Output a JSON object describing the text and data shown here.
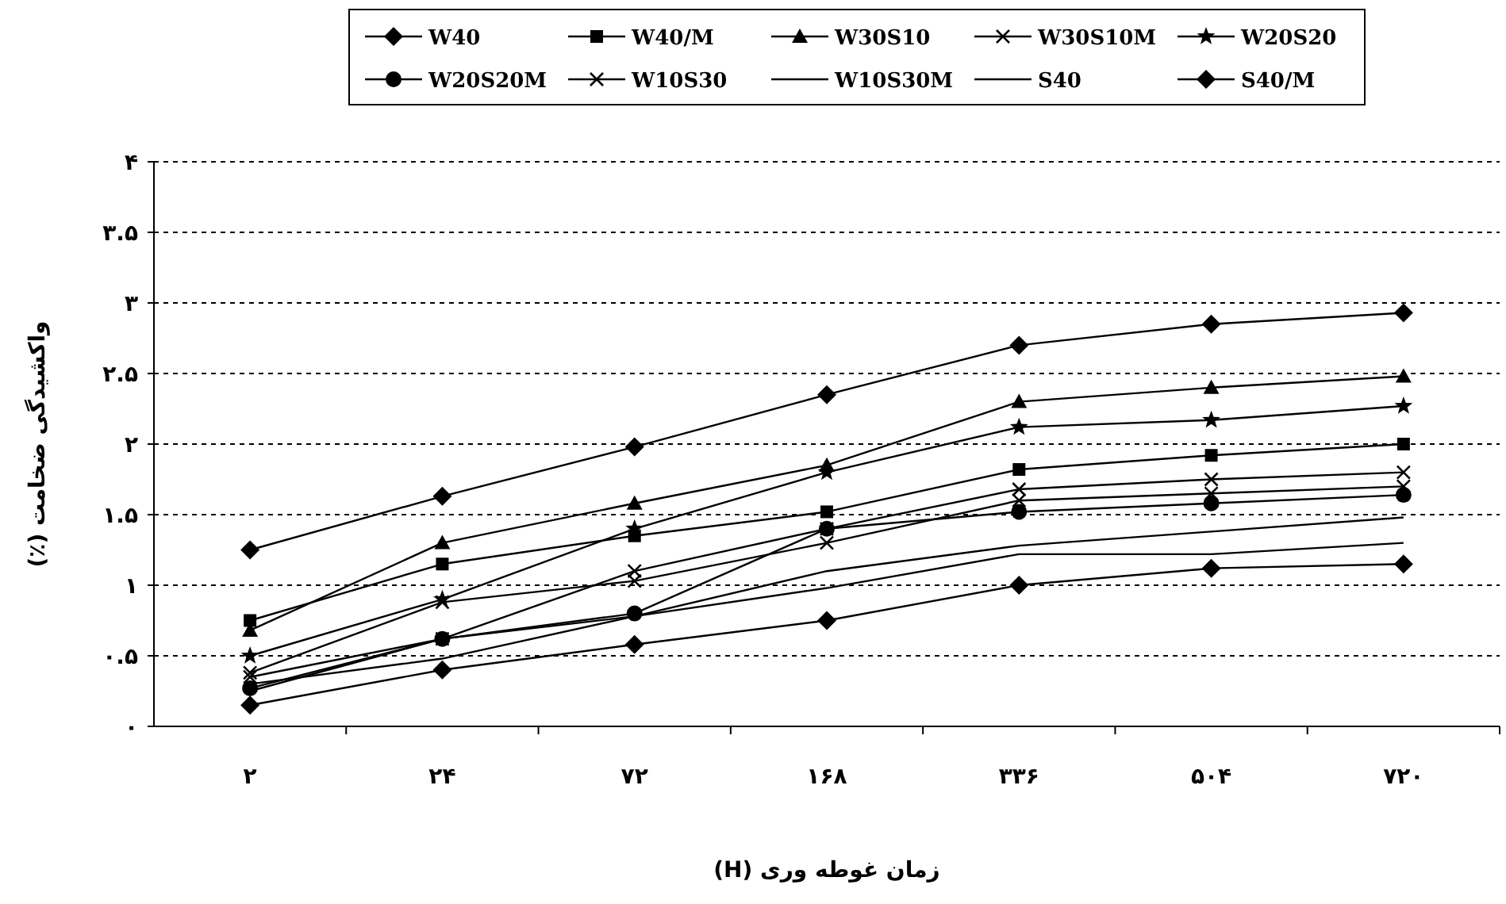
{
  "chart_data": {
    "type": "line",
    "xlabel": "زمان غوطه وری (H)",
    "ylabel": "واکشیدگی ضخامت (٪)",
    "categories": [
      "۲",
      "۲۴",
      "۷۲",
      "۱۶۸",
      "۳۳۶",
      "۵۰۴",
      "۷۲۰"
    ],
    "ylim": [
      0,
      4
    ],
    "yticks": [
      {
        "value": 0,
        "label": "۰"
      },
      {
        "value": 0.5,
        "label": "۰.۵"
      },
      {
        "value": 1,
        "label": "۱"
      },
      {
        "value": 1.5,
        "label": "۱.۵"
      },
      {
        "value": 2,
        "label": "۲"
      },
      {
        "value": 2.5,
        "label": "۲.۵"
      },
      {
        "value": 3,
        "label": "۳"
      },
      {
        "value": 3.5,
        "label": "۳.۵"
      },
      {
        "value": 4,
        "label": "۴"
      }
    ],
    "grid": "y",
    "legend": "top",
    "line_style": "solid",
    "series": [
      {
        "name": "W40",
        "color": "#000000",
        "marker": "diamond",
        "values": [
          1.25,
          1.63,
          1.98,
          2.35,
          2.7,
          2.85,
          2.93
        ]
      },
      {
        "name": "W40/M",
        "color": "#000000",
        "marker": "square",
        "values": [
          0.75,
          1.15,
          1.35,
          1.52,
          1.82,
          1.92,
          2.0
        ]
      },
      {
        "name": "W30S10",
        "color": "#000000",
        "marker": "triangle",
        "values": [
          0.68,
          1.3,
          1.58,
          1.85,
          2.3,
          2.4,
          2.48
        ]
      },
      {
        "name": "W30S10M",
        "color": "#000000",
        "marker": "cross",
        "values": [
          0.35,
          0.62,
          1.1,
          1.4,
          1.68,
          1.75,
          1.8
        ]
      },
      {
        "name": "W20S20",
        "color": "#000000",
        "marker": "star",
        "values": [
          0.5,
          0.9,
          1.4,
          1.8,
          2.12,
          2.17,
          2.27
        ]
      },
      {
        "name": "W20S20M",
        "color": "#000000",
        "marker": "circle",
        "values": [
          0.27,
          0.62,
          0.8,
          1.4,
          1.52,
          1.58,
          1.64
        ]
      },
      {
        "name": "W10S30",
        "color": "#000000",
        "marker": "cross",
        "values": [
          0.38,
          0.88,
          1.03,
          1.3,
          1.6,
          1.65,
          1.7
        ]
      },
      {
        "name": "W10S30M",
        "color": "#000000",
        "marker": "none",
        "values": [
          0.25,
          0.62,
          0.78,
          1.1,
          1.28,
          1.38,
          1.48
        ]
      },
      {
        "name": "S40",
        "color": "#000000",
        "marker": "none",
        "values": [
          0.3,
          0.48,
          0.78,
          0.98,
          1.22,
          1.22,
          1.3
        ]
      },
      {
        "name": "S40/M",
        "color": "#000000",
        "marker": "diamond",
        "values": [
          0.15,
          0.4,
          0.58,
          0.75,
          1.0,
          1.12,
          1.15
        ]
      }
    ]
  }
}
